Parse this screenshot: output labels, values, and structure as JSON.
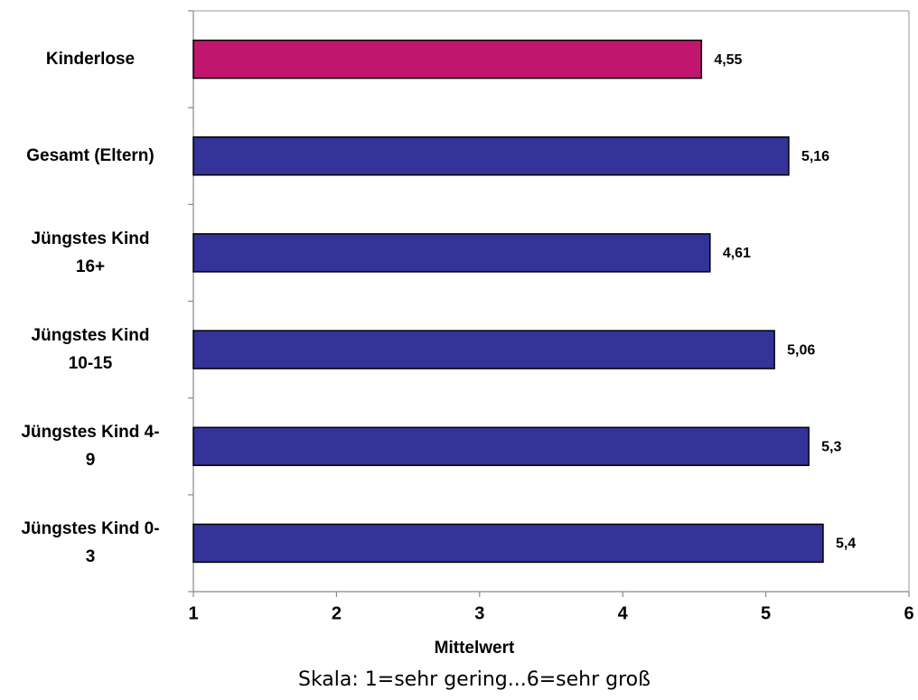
{
  "chart_data": {
    "type": "bar",
    "orientation": "horizontal",
    "categories": [
      "Kinderlose",
      "Gesamt (Eltern)",
      "Jüngstes Kind 16+",
      "Jüngstes Kind 10-15",
      "Jüngstes Kind 4-9",
      "Jüngstes Kind 0-3"
    ],
    "category_lines": [
      [
        "Kinderlose"
      ],
      [
        "Gesamt (Eltern)"
      ],
      [
        "Jüngstes Kind",
        "16+"
      ],
      [
        "Jüngstes Kind",
        "10-15"
      ],
      [
        "Jüngstes Kind 4-",
        "9"
      ],
      [
        "Jüngstes Kind 0-",
        "3"
      ]
    ],
    "values": [
      4.55,
      5.16,
      4.61,
      5.06,
      5.3,
      5.4
    ],
    "value_labels": [
      "4,55",
      "5,16",
      "4,61",
      "5,06",
      "5,3",
      "5,4"
    ],
    "colors": [
      "#c0166e",
      "#333399",
      "#333399",
      "#333399",
      "#333399",
      "#333399"
    ],
    "xlabel": "Mittelwert",
    "xlim": [
      1,
      6
    ],
    "xticks": [
      "1",
      "2",
      "3",
      "4",
      "5",
      "6"
    ],
    "note": "Skala: 1=sehr gering...6=sehr groß",
    "grid": false
  }
}
